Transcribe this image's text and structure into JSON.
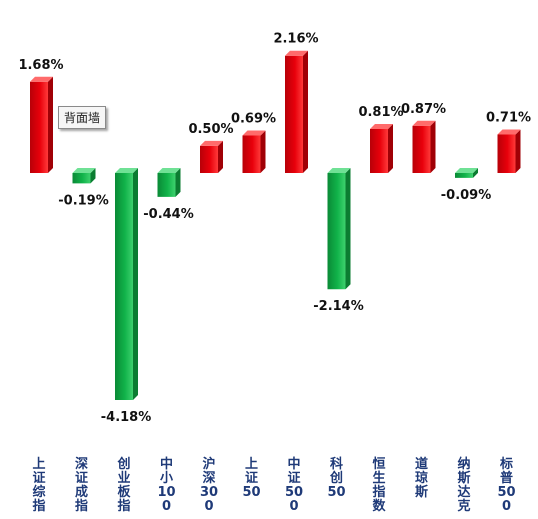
{
  "chart_data": {
    "type": "bar",
    "categories": [
      "上证综指",
      "深证成指",
      "创业板指",
      "中小100",
      "沪深300",
      "上证50",
      "中证500",
      "科创50",
      "恒生指数",
      "道琼斯",
      "纳斯达克",
      "标普500"
    ],
    "values": [
      1.68,
      -0.19,
      -4.18,
      -0.44,
      0.5,
      0.69,
      2.16,
      -2.14,
      0.81,
      0.87,
      -0.09,
      0.71
    ],
    "data_labels": [
      "1.68%",
      "-0.19%",
      "-4.18%",
      "-0.44%",
      "0.50%",
      "0.69%",
      "2.16%",
      "-2.14%",
      "0.81%",
      "0.87%",
      "-0.09%",
      "0.71%"
    ],
    "unit": "%",
    "positive_color": "#e8000b",
    "negative_color": "#11b34a",
    "title": "",
    "xlabel": "",
    "ylabel": "",
    "grid": false
  },
  "tooltip": {
    "text": "背面墙"
  }
}
